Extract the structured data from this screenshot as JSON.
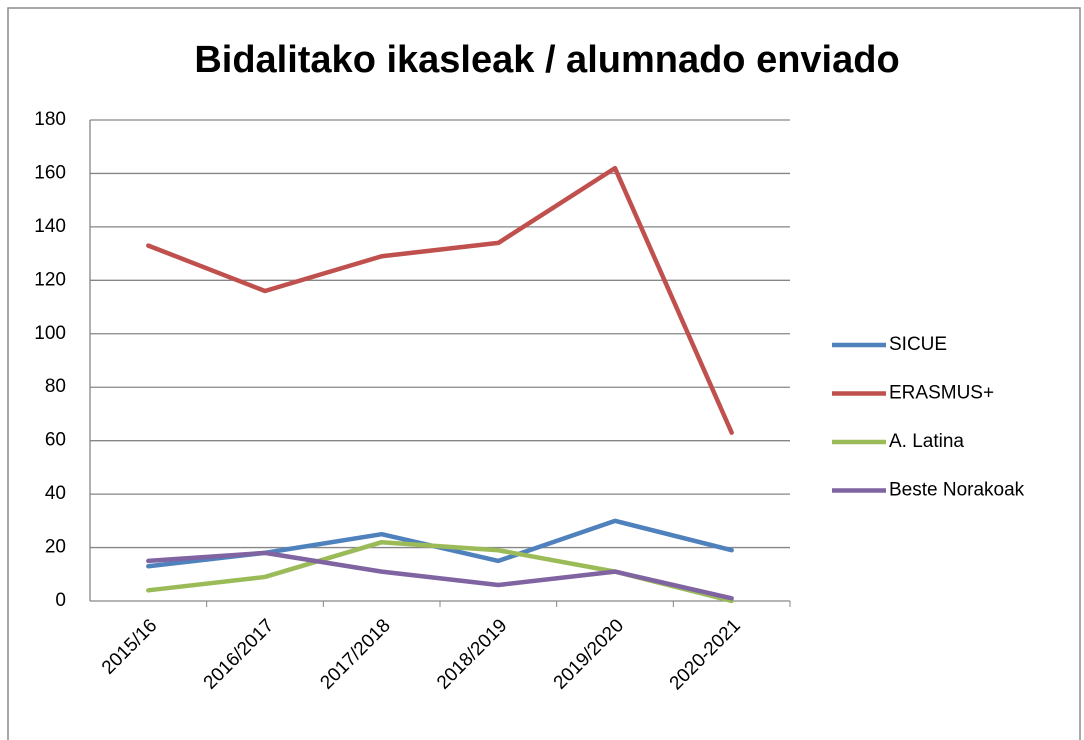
{
  "chart_data": {
    "type": "line",
    "title": "Bidalitako ikasleak / alumnado enviado",
    "categories": [
      "2015/16",
      "2016/2017",
      "2017/2018",
      "2018/2019",
      "2019/2020",
      "2020-2021"
    ],
    "series": [
      {
        "name": "SICUE",
        "color": "#4f81bd",
        "values": [
          13,
          18,
          25,
          15,
          30,
          19
        ]
      },
      {
        "name": "ERASMUS+",
        "color": "#c0504d",
        "values": [
          133,
          116,
          129,
          134,
          162,
          63
        ]
      },
      {
        "name": "A. Latina",
        "color": "#9bbb59",
        "values": [
          4,
          9,
          22,
          19,
          11,
          0
        ]
      },
      {
        "name": "Beste Norakoak",
        "color": "#8064a2",
        "values": [
          15,
          18,
          11,
          6,
          11,
          1
        ]
      }
    ],
    "ylim": [
      0,
      180
    ],
    "yticks": [
      0,
      20,
      40,
      60,
      80,
      100,
      120,
      140,
      160,
      180
    ],
    "grid": true,
    "legend": "right"
  }
}
